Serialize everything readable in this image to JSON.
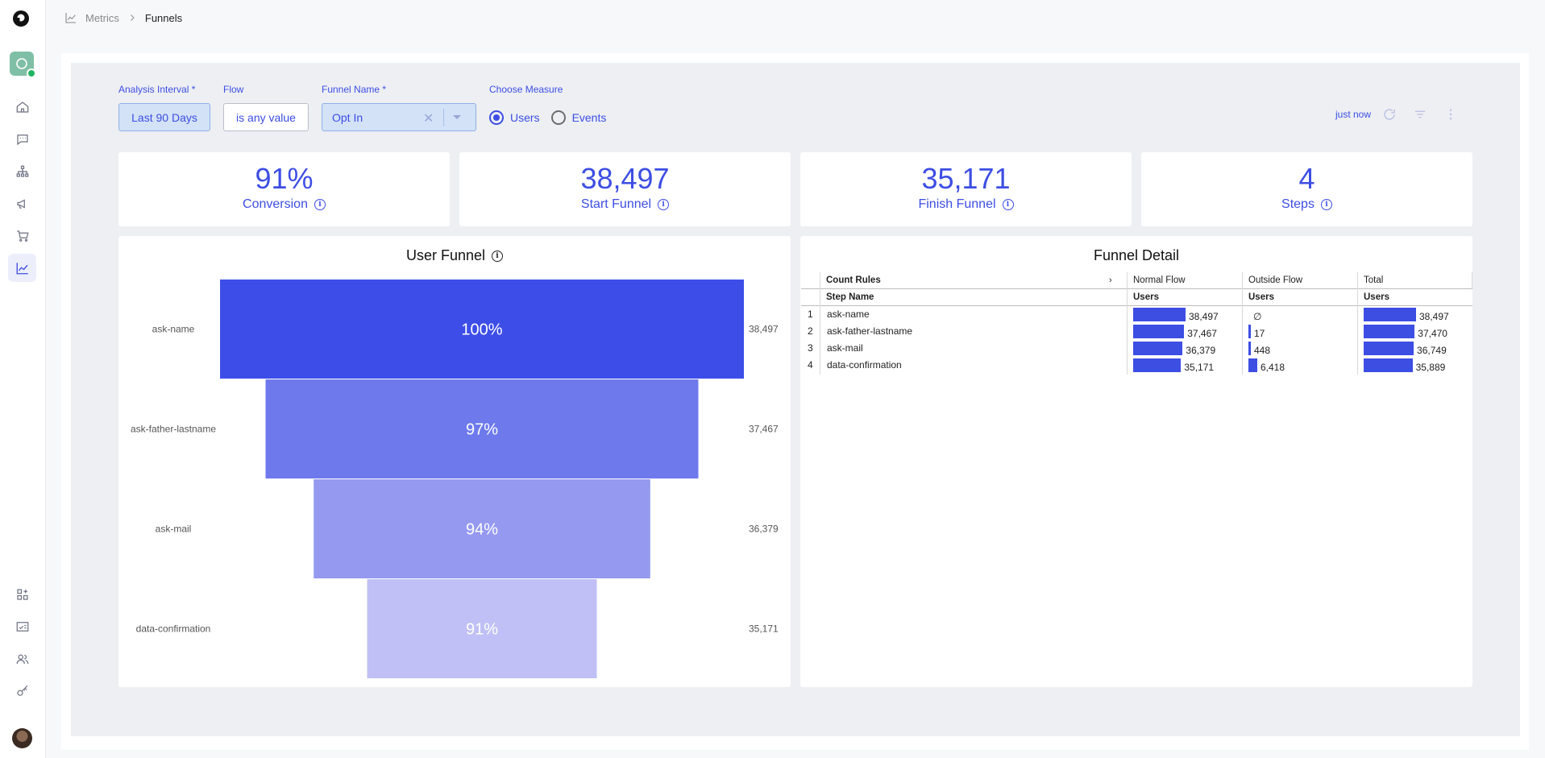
{
  "breadcrumb": {
    "parent": "Metrics",
    "current": "Funnels"
  },
  "filters": {
    "interval_label": "Analysis Interval",
    "interval_value": "Last 90 Days",
    "flow_label": "Flow",
    "flow_value": "is any value",
    "funnel_label": "Funnel Name",
    "funnel_value": "Opt In",
    "measure_label": "Choose Measure",
    "measure_options": [
      "Users",
      "Events"
    ],
    "measure_selected": "Users",
    "required_mark": "*"
  },
  "toolbar": {
    "updated": "just now"
  },
  "kpis": [
    {
      "value": "91%",
      "label": "Conversion"
    },
    {
      "value": "38,497",
      "label": "Start Funnel"
    },
    {
      "value": "35,171",
      "label": "Finish Funnel"
    },
    {
      "value": "4",
      "label": "Steps"
    }
  ],
  "user_funnel": {
    "title": "User Funnel",
    "steps": [
      {
        "name": "ask-name",
        "pct": "100%",
        "value": "38,497"
      },
      {
        "name": "ask-father-lastname",
        "pct": "97%",
        "value": "37,467"
      },
      {
        "name": "ask-mail",
        "pct": "94%",
        "value": "36,379"
      },
      {
        "name": "data-confirmation",
        "pct": "91%",
        "value": "35,171"
      }
    ]
  },
  "funnel_detail": {
    "title": "Funnel Detail",
    "header1": {
      "rules": "Count Rules",
      "normal": "Normal Flow",
      "outside": "Outside Flow",
      "total": "Total"
    },
    "header2": {
      "step": "Step Name",
      "normal": "Users",
      "outside": "Users",
      "total": "Users"
    },
    "rows": [
      {
        "idx": "1",
        "name": "ask-name",
        "normal": "38,497",
        "outside": "∅",
        "total": "38,497"
      },
      {
        "idx": "2",
        "name": "ask-father-lastname",
        "normal": "37,467",
        "outside": "17",
        "total": "37,470"
      },
      {
        "idx": "3",
        "name": "ask-mail",
        "normal": "36,379",
        "outside": "448",
        "total": "36,749"
      },
      {
        "idx": "4",
        "name": "data-confirmation",
        "normal": "35,171",
        "outside": "6,418",
        "total": "35,889"
      }
    ]
  },
  "chart_data": {
    "type": "bar",
    "title": "User Funnel",
    "categories": [
      "ask-name",
      "ask-father-lastname",
      "ask-mail",
      "data-confirmation"
    ],
    "values": [
      38497,
      37467,
      36379,
      35171
    ],
    "percent_labels": [
      "100%",
      "97%",
      "94%",
      "91%"
    ],
    "colors": [
      "#3d4ee8",
      "#6e79ec",
      "#9599f0",
      "#c0c0f6"
    ]
  }
}
